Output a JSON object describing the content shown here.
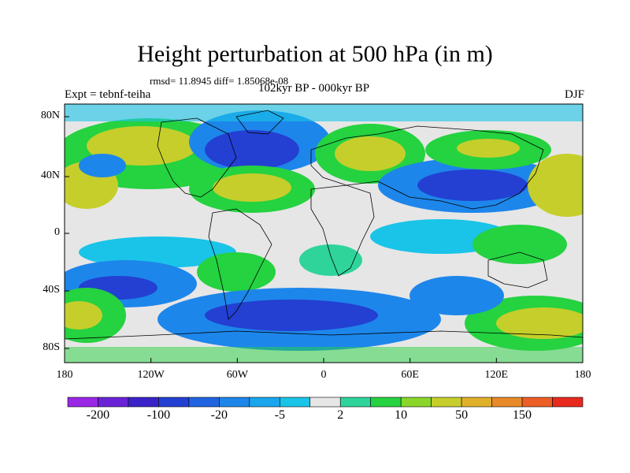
{
  "title": "Height perturbation at 500 hPa (in m)",
  "stats_line": "rmsd= 11.8945 diff= 1.85068e-08",
  "experiment_label": "Expt = tebnf-teiha",
  "period_label": "102kyr BP - 000kyr BP",
  "season_label": "DJF",
  "axes": {
    "x_ticks": [
      "180",
      "120W",
      "60W",
      "0",
      "60E",
      "120E",
      "180"
    ],
    "y_ticks": [
      "80N",
      "40N",
      "0",
      "40S",
      "80S"
    ]
  },
  "colorbar": {
    "labels": [
      "-200",
      "-100",
      "-20",
      "-5",
      "2",
      "10",
      "50",
      "150"
    ],
    "colors": [
      "#9a27e6",
      "#6a22d6",
      "#3a22c9",
      "#2340d2",
      "#1f63e0",
      "#1d86ea",
      "#1aa6ee",
      "#19c4e8",
      "#e6e6e6",
      "#2ed49a",
      "#25d240",
      "#8ad62b",
      "#c6ce2b",
      "#e0b02a",
      "#e88a2a",
      "#ec5e26",
      "#e82a1e"
    ]
  },
  "palette": {
    "land_outline": "#000000",
    "neutral": "#e6e6e6"
  }
}
